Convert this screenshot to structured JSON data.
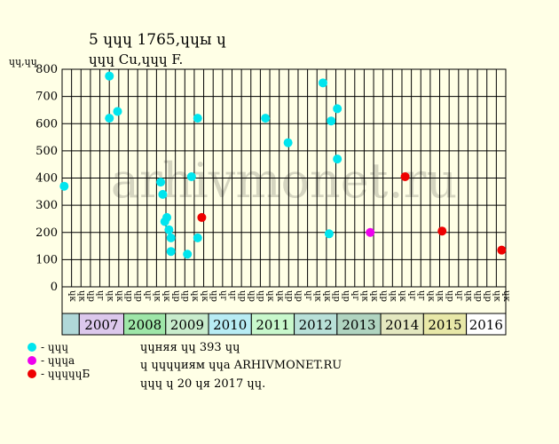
{
  "header": {
    "title": "5 ɥɥɥ 1765,ɥɥы ɥ",
    "subtitle": "ɥɥɥ Cu,ɥɥɥ F.",
    "unit_label": "ɥɥ,ɥɥ"
  },
  "watermark": "arhivmonet.ru",
  "legend": [
    {
      "label": "- ɥɥɥ",
      "color": "#00e5ee"
    },
    {
      "label": "- ɥɥɥa",
      "color": "#ee00ee"
    },
    {
      "label": "- ɥɥɥɥɥБ",
      "color": "#ee0000"
    }
  ],
  "info": [
    "ɥɥняя ɥɥ 393 ɥɥ",
    "ɥ ɥɥɥɥиям ɥɥa ARHIVMONET.RU",
    "ɥɥɥ ɥ 20 ɥя 2017 ɥɥ."
  ],
  "chart_data": {
    "type": "scatter",
    "ylim": [
      0,
      800
    ],
    "yticks": [
      0,
      100,
      200,
      300,
      400,
      500,
      600,
      700,
      800
    ],
    "year_range": [
      2006.0,
      2016.8
    ],
    "quarter_labels": [
      "ɥк",
      "ɥк",
      "ɥр",
      "ɥг",
      "ɥк",
      "ɥк",
      "ɥр",
      "ɥр",
      "ɥг",
      "ɥк",
      "ɥк",
      "ɥр",
      "ɥр",
      "ɥк",
      "ɥк",
      "ɥр",
      "ɥг",
      "ɥг",
      "ɥр",
      "ɥр",
      "ɥр",
      "ɥк",
      "ɥк",
      "ɥр",
      "ɥр",
      "ɥг",
      "ɥк",
      "ɥк",
      "ɥр",
      "ɥр",
      "ɥг",
      "ɥк",
      "ɥк",
      "ɥр",
      "ɥк",
      "ɥк",
      "ɥг",
      "ɥг",
      "ɥк",
      "ɥк",
      "ɥр",
      "ɥг",
      "ɥк",
      "ɥр",
      "ɥр",
      "ɥк",
      "ɥк"
    ],
    "year_bands": [
      {
        "label": "",
        "color": "#b0d8d8"
      },
      {
        "label": "2007",
        "color": "#dcc8ec"
      },
      {
        "label": "2008",
        "color": "#9ee6a8"
      },
      {
        "label": "2009",
        "color": "#c8eccc"
      },
      {
        "label": "2010",
        "color": "#b8ecf4"
      },
      {
        "label": "2011",
        "color": "#c8f8cc"
      },
      {
        "label": "2012",
        "color": "#b8e0d8"
      },
      {
        "label": "2013",
        "color": "#b0d4c0"
      },
      {
        "label": "2014",
        "color": "#e4e8c0"
      },
      {
        "label": "2015",
        "color": "#e8e8a8"
      },
      {
        "label": "2016",
        "color": "#ffffff"
      }
    ],
    "series": [
      {
        "legend_index": 0,
        "color": "#00e5ee",
        "points": [
          [
            2006.05,
            370
          ],
          [
            2007.15,
            620
          ],
          [
            2007.15,
            775
          ],
          [
            2007.35,
            645
          ],
          [
            2008.4,
            385
          ],
          [
            2008.45,
            340
          ],
          [
            2008.5,
            240
          ],
          [
            2008.55,
            255
          ],
          [
            2008.6,
            210
          ],
          [
            2008.65,
            180
          ],
          [
            2008.65,
            130
          ],
          [
            2009.05,
            120
          ],
          [
            2009.15,
            405
          ],
          [
            2009.3,
            180
          ],
          [
            2009.3,
            620
          ],
          [
            2010.95,
            620
          ],
          [
            2011.5,
            530
          ],
          [
            2012.35,
            750
          ],
          [
            2012.5,
            195
          ],
          [
            2012.55,
            610
          ],
          [
            2012.7,
            470
          ],
          [
            2012.7,
            655
          ]
        ]
      },
      {
        "legend_index": 1,
        "color": "#ee00ee",
        "points": [
          [
            2013.5,
            200
          ]
        ]
      },
      {
        "legend_index": 2,
        "color": "#ee0000",
        "points": [
          [
            2009.4,
            255
          ],
          [
            2014.35,
            405
          ],
          [
            2015.25,
            205
          ],
          [
            2016.7,
            135
          ]
        ]
      }
    ]
  }
}
